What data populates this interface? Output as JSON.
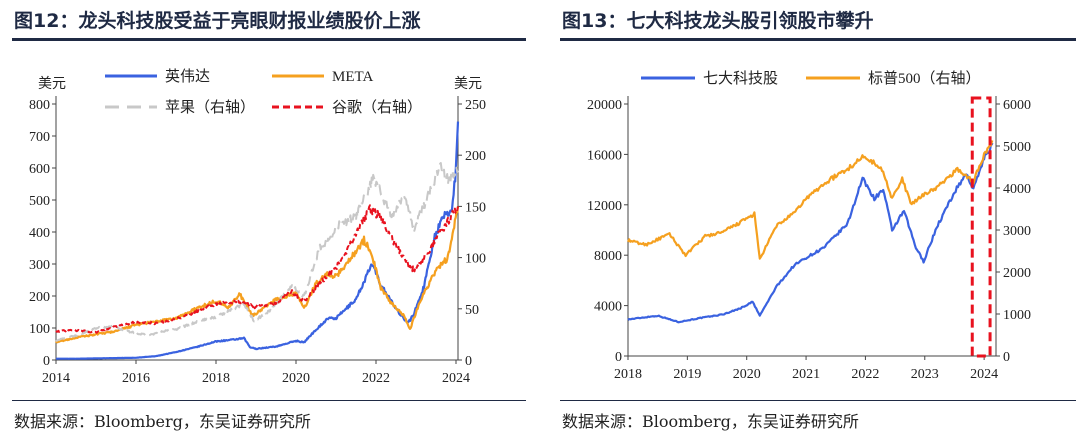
{
  "left": {
    "title": "图12：龙头科技股受益于亮眼财报业绩股价上涨",
    "source": "数据来源：Bloomberg，东吴证券研究所",
    "chart_data": {
      "type": "line",
      "left_unit": "美元",
      "right_unit": "美元",
      "x_ticks": [
        "2014",
        "2016",
        "2018",
        "2020",
        "2022",
        "2024"
      ],
      "xlim": [
        2014,
        2024.05
      ],
      "ylim_left": [
        0,
        800
      ],
      "ylim_right": [
        0,
        250
      ],
      "y_ticks_left": [
        0,
        100,
        200,
        300,
        400,
        500,
        600,
        700,
        800
      ],
      "y_ticks_right": [
        0,
        50,
        100,
        150,
        200,
        250
      ],
      "series": [
        {
          "name": "英伟达",
          "axis": "left",
          "color": "#3a62e0",
          "style": "solid",
          "points": [
            [
              2014,
              4
            ],
            [
              2014.5,
              4
            ],
            [
              2015,
              5
            ],
            [
              2015.5,
              6
            ],
            [
              2016,
              7
            ],
            [
              2016.5,
              12
            ],
            [
              2017,
              25
            ],
            [
              2017.5,
              40
            ],
            [
              2018,
              58
            ],
            [
              2018.4,
              63
            ],
            [
              2018.7,
              68
            ],
            [
              2018.85,
              40
            ],
            [
              2019,
              35
            ],
            [
              2019.5,
              42
            ],
            [
              2020,
              60
            ],
            [
              2020.2,
              55
            ],
            [
              2020.5,
              95
            ],
            [
              2020.8,
              130
            ],
            [
              2021,
              130
            ],
            [
              2021.5,
              190
            ],
            [
              2021.9,
              300
            ],
            [
              2022.1,
              240
            ],
            [
              2022.5,
              160
            ],
            [
              2022.8,
              115
            ],
            [
              2022.95,
              145
            ],
            [
              2023.2,
              230
            ],
            [
              2023.45,
              380
            ],
            [
              2023.7,
              450
            ],
            [
              2023.9,
              470
            ],
            [
              2024.0,
              600
            ],
            [
              2024.05,
              745
            ]
          ]
        },
        {
          "name": "META",
          "axis": "left",
          "color": "#f5a01f",
          "style": "solid",
          "points": [
            [
              2014,
              55
            ],
            [
              2014.5,
              70
            ],
            [
              2015,
              80
            ],
            [
              2015.5,
              90
            ],
            [
              2016,
              110
            ],
            [
              2016.5,
              120
            ],
            [
              2017,
              130
            ],
            [
              2017.5,
              160
            ],
            [
              2018,
              185
            ],
            [
              2018.3,
              165
            ],
            [
              2018.6,
              205
            ],
            [
              2018.9,
              140
            ],
            [
              2019,
              145
            ],
            [
              2019.5,
              190
            ],
            [
              2020,
              210
            ],
            [
              2020.2,
              160
            ],
            [
              2020.5,
              240
            ],
            [
              2020.8,
              270
            ],
            [
              2021,
              260
            ],
            [
              2021.5,
              340
            ],
            [
              2021.7,
              375
            ],
            [
              2021.9,
              330
            ],
            [
              2022.1,
              230
            ],
            [
              2022.4,
              175
            ],
            [
              2022.7,
              140
            ],
            [
              2022.85,
              95
            ],
            [
              2023.1,
              185
            ],
            [
              2023.5,
              280
            ],
            [
              2023.8,
              320
            ],
            [
              2024.05,
              480
            ]
          ]
        },
        {
          "name": "苹果（右轴）",
          "axis": "right",
          "color": "#c8c8c8",
          "style": "dashed",
          "points": [
            [
              2014,
              19
            ],
            [
              2014.5,
              24
            ],
            [
              2015,
              31
            ],
            [
              2015.4,
              33
            ],
            [
              2015.8,
              28
            ],
            [
              2016.3,
              24
            ],
            [
              2016.7,
              28
            ],
            [
              2017,
              30
            ],
            [
              2017.5,
              37
            ],
            [
              2018,
              42
            ],
            [
              2018.7,
              55
            ],
            [
              2018.95,
              38
            ],
            [
              2019.4,
              50
            ],
            [
              2019.9,
              72
            ],
            [
              2020.2,
              62
            ],
            [
              2020.6,
              110
            ],
            [
              2020.9,
              120
            ],
            [
              2021,
              130
            ],
            [
              2021.5,
              140
            ],
            [
              2021.95,
              178
            ],
            [
              2022.4,
              140
            ],
            [
              2022.7,
              160
            ],
            [
              2022.95,
              128
            ],
            [
              2023.3,
              160
            ],
            [
              2023.6,
              190
            ],
            [
              2023.8,
              175
            ],
            [
              2024.05,
              185
            ]
          ]
        },
        {
          "name": "谷歌（右轴）",
          "axis": "right",
          "color": "#e8121f",
          "style": "dashed",
          "points": [
            [
              2014,
              28
            ],
            [
              2014.5,
              29
            ],
            [
              2015,
              27
            ],
            [
              2015.5,
              33
            ],
            [
              2016,
              37
            ],
            [
              2016.5,
              36
            ],
            [
              2017,
              40
            ],
            [
              2017.5,
              47
            ],
            [
              2018,
              55
            ],
            [
              2018.6,
              57
            ],
            [
              2018.95,
              52
            ],
            [
              2019.5,
              56
            ],
            [
              2019.9,
              67
            ],
            [
              2020.2,
              57
            ],
            [
              2020.6,
              75
            ],
            [
              2020.9,
              87
            ],
            [
              2021,
              90
            ],
            [
              2021.5,
              122
            ],
            [
              2021.85,
              148
            ],
            [
              2022.1,
              140
            ],
            [
              2022.5,
              112
            ],
            [
              2022.85,
              90
            ],
            [
              2023,
              88
            ],
            [
              2023.3,
              105
            ],
            [
              2023.6,
              125
            ],
            [
              2023.8,
              135
            ],
            [
              2024.05,
              150
            ]
          ]
        }
      ]
    }
  },
  "right": {
    "title": "图13：七大科技龙头股引领股市攀升",
    "source": "数据来源：Bloomberg，东吴证券研究所",
    "chart_data": {
      "type": "line",
      "x_ticks": [
        "2018",
        "2019",
        "2020",
        "2021",
        "2022",
        "2023",
        "2024"
      ],
      "xlim": [
        2018,
        2024.2
      ],
      "ylim_left": [
        0,
        20000
      ],
      "ylim_right": [
        0,
        6000
      ],
      "y_ticks_left": [
        0,
        4000,
        8000,
        12000,
        16000,
        20000
      ],
      "y_ticks_right": [
        0,
        1000,
        2000,
        3000,
        4000,
        5000,
        6000
      ],
      "highlight_x": [
        2023.8,
        2024.1
      ],
      "series": [
        {
          "name": "七大科技股",
          "axis": "left",
          "color": "#3a62e0",
          "style": "solid",
          "points": [
            [
              2018,
              2900
            ],
            [
              2018.5,
              3200
            ],
            [
              2018.85,
              2700
            ],
            [
              2019.2,
              3000
            ],
            [
              2019.6,
              3300
            ],
            [
              2019.9,
              3800
            ],
            [
              2020.1,
              4300
            ],
            [
              2020.22,
              3200
            ],
            [
              2020.5,
              5500
            ],
            [
              2020.8,
              7200
            ],
            [
              2021,
              7800
            ],
            [
              2021.3,
              8600
            ],
            [
              2021.7,
              10500
            ],
            [
              2021.95,
              14100
            ],
            [
              2022.15,
              12500
            ],
            [
              2022.3,
              13200
            ],
            [
              2022.45,
              10000
            ],
            [
              2022.65,
              11500
            ],
            [
              2022.85,
              8600
            ],
            [
              2022.98,
              7500
            ],
            [
              2023.2,
              10200
            ],
            [
              2023.5,
              13000
            ],
            [
              2023.7,
              14500
            ],
            [
              2023.82,
              13200
            ],
            [
              2024.0,
              15800
            ],
            [
              2024.15,
              16800
            ]
          ]
        },
        {
          "name": "标普500（右轴）",
          "axis": "right",
          "color": "#f5a01f",
          "style": "solid",
          "points": [
            [
              2018,
              2750
            ],
            [
              2018.3,
              2650
            ],
            [
              2018.7,
              2900
            ],
            [
              2018.97,
              2400
            ],
            [
              2019.3,
              2850
            ],
            [
              2019.6,
              2950
            ],
            [
              2019.95,
              3230
            ],
            [
              2020.13,
              3380
            ],
            [
              2020.22,
              2300
            ],
            [
              2020.5,
              3100
            ],
            [
              2020.8,
              3400
            ],
            [
              2021,
              3750
            ],
            [
              2021.4,
              4200
            ],
            [
              2021.7,
              4450
            ],
            [
              2021.99,
              4780
            ],
            [
              2022.3,
              4400
            ],
            [
              2022.45,
              3750
            ],
            [
              2022.62,
              4200
            ],
            [
              2022.78,
              3600
            ],
            [
              2022.98,
              3850
            ],
            [
              2023.2,
              4000
            ],
            [
              2023.55,
              4450
            ],
            [
              2023.82,
              4150
            ],
            [
              2024.0,
              4800
            ],
            [
              2024.15,
              5100
            ]
          ]
        }
      ]
    }
  }
}
